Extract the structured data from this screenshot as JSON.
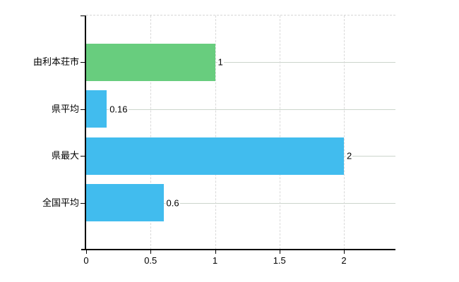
{
  "chart_data": {
    "type": "bar",
    "orientation": "horizontal",
    "title": "",
    "xlabel": "",
    "ylabel": "",
    "categories": [
      "由利本荘市",
      "県平均",
      "県最大",
      "全国平均"
    ],
    "values": [
      1,
      0.16,
      2,
      0.6
    ],
    "value_labels": [
      "1",
      "0.16",
      "2",
      "0.6"
    ],
    "bar_colors": [
      "#68cd7e",
      "#41bcee",
      "#41bcee",
      "#41bcee"
    ],
    "xlim": [
      0,
      2.4
    ],
    "xticks": [
      0,
      0.5,
      1,
      1.5,
      2
    ],
    "xtick_labels": [
      "0",
      "0.5",
      "1",
      "1.5",
      "2"
    ],
    "grid": "on",
    "legend": "none",
    "colors": {
      "axis": "#000000",
      "text": "#000000",
      "background": "#ffffff",
      "vertical_gridline": "#d9d9d9",
      "horizontal_gridline": "#ccd5cc",
      "top_border": "#d6d6d6"
    }
  }
}
